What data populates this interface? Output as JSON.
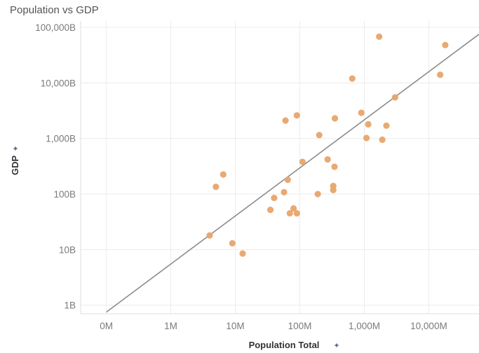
{
  "chart_data": {
    "type": "scatter",
    "title": "Population vs GDP",
    "xlabel": "Population Total",
    "ylabel": "GDP",
    "x_scale": "log",
    "y_scale": "log",
    "xlim": [
      0.04,
      60000
    ],
    "ylim": [
      0.7,
      130000
    ],
    "x_ticks": [
      {
        "value": 0.1,
        "label": "0M"
      },
      {
        "value": 1,
        "label": "1M"
      },
      {
        "value": 10,
        "label": "10M"
      },
      {
        "value": 100,
        "label": "100M"
      },
      {
        "value": 1000,
        "label": "1,000M"
      },
      {
        "value": 10000,
        "label": "10,000M"
      }
    ],
    "y_ticks": [
      {
        "value": 1,
        "label": "1B"
      },
      {
        "value": 10,
        "label": "10B"
      },
      {
        "value": 100,
        "label": "100B"
      },
      {
        "value": 1000,
        "label": "1,000B"
      },
      {
        "value": 10000,
        "label": "10,000B"
      },
      {
        "value": 100000,
        "label": "100,000B"
      }
    ],
    "grid": true,
    "point_color": "#e8a46c",
    "trend_line_color": "#8c8c8c",
    "trend_line": [
      [
        0.1,
        0.75
      ],
      [
        60000,
        75000
      ]
    ],
    "points": [
      {
        "x": 4,
        "y": 18
      },
      {
        "x": 5,
        "y": 135
      },
      {
        "x": 6.5,
        "y": 225
      },
      {
        "x": 9,
        "y": 13
      },
      {
        "x": 13,
        "y": 8.5
      },
      {
        "x": 35,
        "y": 52
      },
      {
        "x": 40,
        "y": 85
      },
      {
        "x": 57,
        "y": 108
      },
      {
        "x": 60,
        "y": 2100
      },
      {
        "x": 65,
        "y": 180
      },
      {
        "x": 70,
        "y": 45
      },
      {
        "x": 80,
        "y": 55
      },
      {
        "x": 90,
        "y": 45
      },
      {
        "x": 90,
        "y": 2600
      },
      {
        "x": 110,
        "y": 380
      },
      {
        "x": 190,
        "y": 100
      },
      {
        "x": 200,
        "y": 1150
      },
      {
        "x": 270,
        "y": 420
      },
      {
        "x": 330,
        "y": 118
      },
      {
        "x": 330,
        "y": 140
      },
      {
        "x": 345,
        "y": 310
      },
      {
        "x": 350,
        "y": 2300
      },
      {
        "x": 650,
        "y": 12000
      },
      {
        "x": 900,
        "y": 2900
      },
      {
        "x": 1080,
        "y": 1020
      },
      {
        "x": 1150,
        "y": 1800
      },
      {
        "x": 1700,
        "y": 68000
      },
      {
        "x": 1900,
        "y": 950
      },
      {
        "x": 2200,
        "y": 1700
      },
      {
        "x": 3000,
        "y": 5500
      },
      {
        "x": 15000,
        "y": 14000
      },
      {
        "x": 18000,
        "y": 48000
      }
    ]
  }
}
